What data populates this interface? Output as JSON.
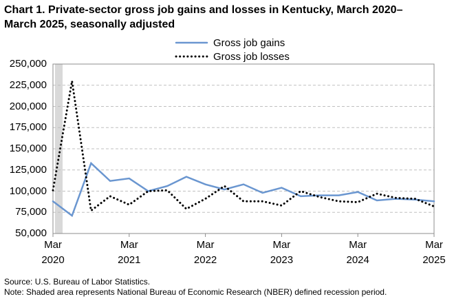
{
  "chart_data": {
    "type": "line",
    "title": "Chart 1. Private-sector gross job gains and losses in Kentucky, March 2020–March 2025, seasonally adjusted",
    "categories": [
      "Mar\n2020",
      null,
      null,
      null,
      "Mar\n2021",
      null,
      null,
      null,
      "Mar\n2022",
      null,
      null,
      null,
      "Mar\n2023",
      null,
      null,
      null,
      "Mar\n2024",
      null,
      null,
      null,
      "Mar\n2025"
    ],
    "series": [
      {
        "name": "Gross job gains",
        "color": "#6a96d0",
        "style": "solid",
        "values": [
          88000,
          71000,
          133000,
          112000,
          115000,
          100000,
          106000,
          117000,
          108000,
          102000,
          108000,
          98000,
          104000,
          94000,
          95000,
          95000,
          99000,
          89000,
          91000,
          90000,
          88000
        ]
      },
      {
        "name": "Gross job losses",
        "color": "#000000",
        "style": "dotted",
        "values": [
          101000,
          230000,
          77000,
          94000,
          84000,
          100000,
          101000,
          79000,
          91000,
          106000,
          88000,
          88000,
          83000,
          100000,
          93000,
          88000,
          87000,
          97000,
          92000,
          91000,
          82000
        ]
      }
    ],
    "ylim": [
      50000,
      250000
    ],
    "yticks": [
      {
        "value": 50000,
        "label": "50,000"
      },
      {
        "value": 75000,
        "label": "75,000"
      },
      {
        "value": 100000,
        "label": "100,000"
      },
      {
        "value": 125000,
        "label": "125,000"
      },
      {
        "value": 150000,
        "label": "150,000"
      },
      {
        "value": 175000,
        "label": "175,000"
      },
      {
        "value": 200000,
        "label": "200,000"
      },
      {
        "value": 225000,
        "label": "225,000"
      },
      {
        "value": 250000,
        "label": "250,000"
      }
    ],
    "grid": true,
    "source": "Source: U.S. Bureau of Labor Statistics.",
    "note": "Note: Shaded area represents National Bureau of Economic Research (NBER) defined recession period."
  }
}
